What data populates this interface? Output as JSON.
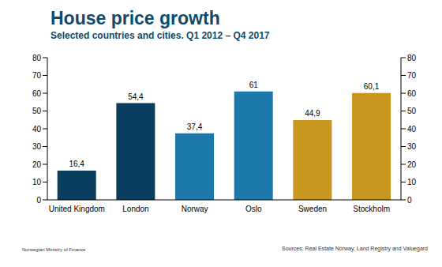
{
  "chart_data": {
    "type": "bar",
    "title": "House price growth",
    "subtitle": "Selected countries and cities. Q1 2012 – Q4 2017",
    "categories": [
      "United Kingdom",
      "London",
      "Norway",
      "Oslo",
      "Sweden",
      "Stockholm"
    ],
    "values": [
      16.4,
      54.4,
      37.4,
      61,
      44.9,
      60.1
    ],
    "value_labels": [
      "16,4",
      "54,4",
      "37,4",
      "61",
      "44,9",
      "60,1"
    ],
    "colors": [
      "#0b3f60",
      "#0b3f60",
      "#1d79ab",
      "#1d79ab",
      "#c9971f",
      "#c9971f"
    ],
    "ylim": [
      0,
      80
    ],
    "yticks": [
      0,
      10,
      20,
      30,
      40,
      50,
      60,
      70,
      80
    ],
    "grid": false,
    "data_labels": true,
    "annotations": [
      "Norwegian Ministry of Finance",
      "Sources: Real Estate Norway, Land Registry and Valuegard"
    ]
  }
}
